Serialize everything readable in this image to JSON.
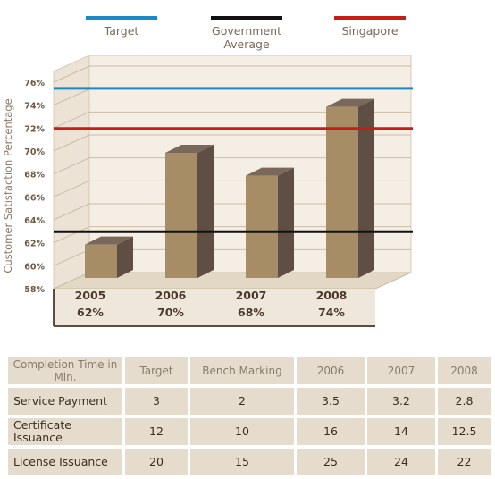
{
  "legend": [
    {
      "label": "Target",
      "color": "#1a8ac7"
    },
    {
      "label": "Government\nAverage",
      "color": "#111111"
    },
    {
      "label": "Singapore",
      "color": "#c81d13"
    }
  ],
  "chart_data": {
    "type": "bar",
    "ylabel": "Customer Satisfaction Percentage",
    "ylim": [
      58,
      76
    ],
    "yticks": [
      "76%",
      "74%",
      "72%",
      "70%",
      "68%",
      "66%",
      "64%",
      "62%",
      "60%",
      "58%"
    ],
    "categories": [
      "2005",
      "2006",
      "2007",
      "2008"
    ],
    "value_labels": [
      "62%",
      "70%",
      "68%",
      "74%"
    ],
    "values": [
      62,
      70,
      68,
      74
    ],
    "reference_lines": [
      {
        "name": "Target",
        "value": 75,
        "color": "#1a8ac7"
      },
      {
        "name": "Government Average",
        "value": 62.5,
        "color": "#111111"
      },
      {
        "name": "Singapore",
        "value": 71.5,
        "color": "#c81d13"
      }
    ],
    "bar_color": "#a68d66"
  },
  "table": {
    "headers": [
      "Completion Time in Min.",
      "Target",
      "Bench Marking",
      "2006",
      "2007",
      "2008"
    ],
    "rows": [
      [
        "Service Payment",
        "3",
        "2",
        "3.5",
        "3.2",
        "2.8"
      ],
      [
        "Certificate Issuance",
        "12",
        "10",
        "16",
        "14",
        "12.5"
      ],
      [
        "License Issuance",
        "20",
        "15",
        "25",
        "24",
        "22"
      ]
    ]
  }
}
